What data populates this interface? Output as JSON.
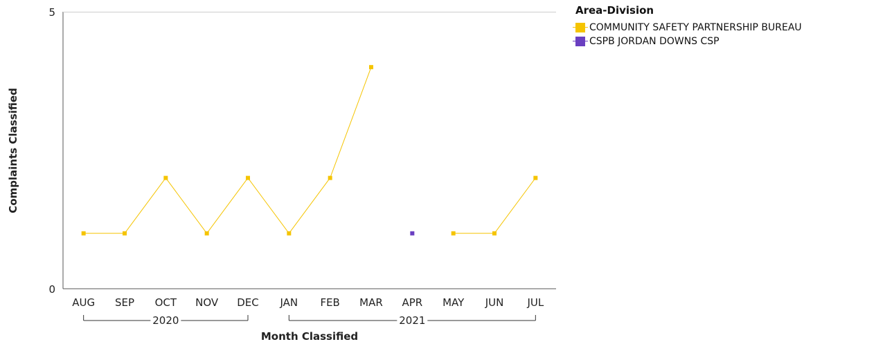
{
  "chart_data": {
    "type": "line",
    "xlabel": "Month Classified",
    "ylabel": "Complaints Classified",
    "ylim": [
      0,
      5
    ],
    "yticks": [
      "0",
      "5"
    ],
    "categories": [
      "AUG",
      "SEP",
      "OCT",
      "NOV",
      "DEC",
      "JAN",
      "FEB",
      "MAR",
      "APR",
      "MAY",
      "JUN",
      "JUL"
    ],
    "year_groups": [
      {
        "label": "2020",
        "from": 0,
        "to": 4
      },
      {
        "label": "2021",
        "from": 5,
        "to": 11
      }
    ],
    "legend_title": "Area-Division",
    "series": [
      {
        "name": "COMMUNITY SAFETY PARTNERSHIP BUREAU",
        "color": "#f5c400",
        "values": [
          1,
          1,
          2,
          1,
          2,
          1,
          2,
          4,
          null,
          1,
          1,
          2
        ]
      },
      {
        "name": "CSPB JORDAN DOWNS CSP",
        "color": "#6a3fc1",
        "values": [
          null,
          null,
          null,
          null,
          null,
          null,
          null,
          null,
          1,
          null,
          null,
          null
        ]
      }
    ]
  }
}
